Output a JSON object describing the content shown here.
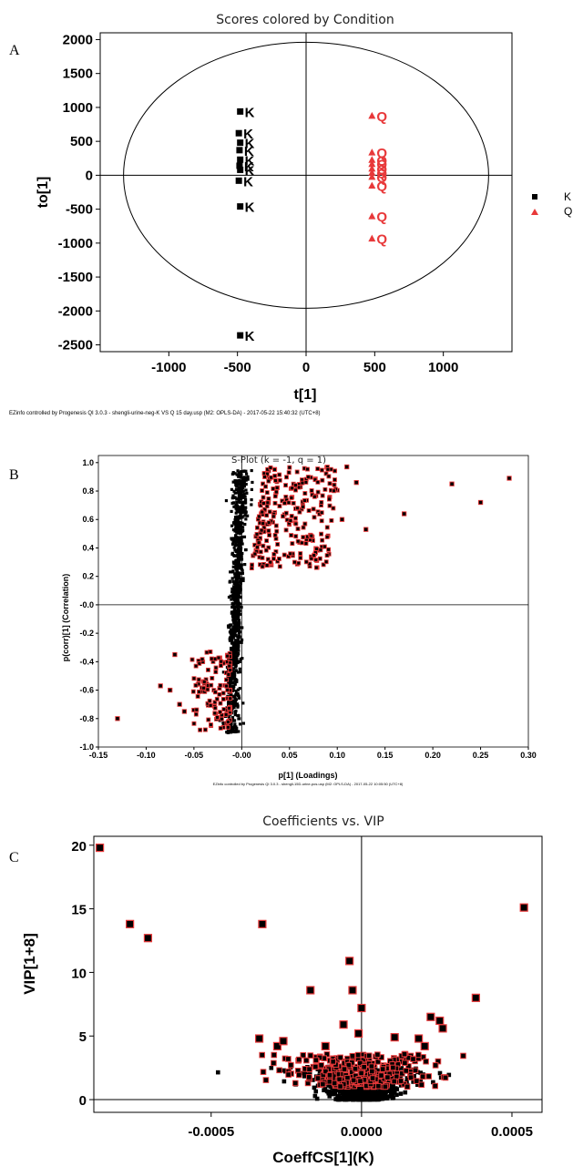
{
  "colors": {
    "k": "#000000",
    "q": "#e8393a",
    "edge": "#e8393a"
  },
  "chart_data": [
    {
      "panel": "A",
      "type": "scatter",
      "title": "Scores colored by Condition",
      "xlabel": "t[1]",
      "ylabel": "to[1]",
      "xlim": [
        -1500,
        1500
      ],
      "ylim": [
        -2600,
        2100
      ],
      "xticks": [
        "-1000",
        "-500",
        "0",
        "500",
        "1000"
      ],
      "xtick_values": [
        -1000,
        -500,
        0,
        500,
        1000
      ],
      "yticks": [
        "2000",
        "1500",
        "1000",
        "500",
        "0",
        "-500",
        "-1000",
        "-1500",
        "-2000",
        "-2500"
      ],
      "ytick_values": [
        2000,
        1500,
        1000,
        500,
        0,
        -500,
        -1000,
        -1500,
        -2000,
        -2500
      ],
      "ellipse": {
        "rx": 1330,
        "ry_top": 1960,
        "ry_bottom": 1960
      },
      "footnote": "EZinfo controlled by Progenesis QI 3.0.3 - shengli-urine-neg-K VS Q 15 day.usp (M2: OPLS-DA) - 2017-05-22 15:40:32 (UTC+8)",
      "legend": [
        "K",
        "Q"
      ],
      "series": [
        {
          "name": "K",
          "marker": "square",
          "label": "K",
          "points": [
            [
              -480,
              940
            ],
            [
              -490,
              620
            ],
            [
              -480,
              480
            ],
            [
              -485,
              370
            ],
            [
              -480,
              230
            ],
            [
              -485,
              140
            ],
            [
              -480,
              80
            ],
            [
              -490,
              -80
            ],
            [
              -480,
              -460
            ],
            [
              -480,
              -2360
            ]
          ]
        },
        {
          "name": "Q",
          "marker": "triangle",
          "label": "Q",
          "points": [
            [
              480,
              880
            ],
            [
              480,
              340
            ],
            [
              480,
              230
            ],
            [
              480,
              170
            ],
            [
              480,
              100
            ],
            [
              480,
              40
            ],
            [
              480,
              -20
            ],
            [
              480,
              -150
            ],
            [
              480,
              -600
            ],
            [
              480,
              -930
            ]
          ]
        }
      ]
    },
    {
      "panel": "B",
      "type": "scatter",
      "title": "S-Plot (k = -1, q = 1)",
      "xlabel": "p[1] (Loadings)",
      "ylabel": "p(corr)[1] (Correlation)",
      "xlim": [
        -0.15,
        0.3
      ],
      "ylim": [
        -1.0,
        1.05
      ],
      "xticks": [
        "-0.15",
        "-0.10",
        "-0.05",
        "-0.00",
        "0.05",
        "0.10",
        "0.15",
        "0.20",
        "0.25",
        "0.30"
      ],
      "xtick_values": [
        -0.15,
        -0.1,
        -0.05,
        0.0,
        0.05,
        0.1,
        0.15,
        0.2,
        0.25,
        0.3
      ],
      "yticks": [
        "1.0",
        "0.8",
        "0.6",
        "0.4",
        "0.2",
        "-0.0",
        "-0.2",
        "-0.4",
        "-0.6",
        "-0.8",
        "-1.0"
      ],
      "ytick_values": [
        1.0,
        0.8,
        0.6,
        0.4,
        0.2,
        0.0,
        -0.2,
        -0.4,
        -0.6,
        -0.8,
        -1.0
      ],
      "footnote": "EZinfo controlled by Progenesis QI 3.0.3 - shengli-15D-urine-pos.usp (M2: OPLS-DA) - 2017-05-22 10:05:50 (UTC+8)",
      "outliers": [
        [
          -0.13,
          -0.8
        ],
        [
          0.28,
          0.89
        ],
        [
          0.25,
          0.72
        ],
        [
          0.22,
          0.85
        ],
        [
          0.17,
          0.64
        ],
        [
          0.13,
          0.53
        ],
        [
          0.12,
          0.86
        ],
        [
          0.11,
          0.97
        ],
        [
          0.105,
          0.6
        ],
        [
          -0.085,
          -0.57
        ],
        [
          -0.07,
          -0.35
        ],
        [
          -0.065,
          -0.7
        ],
        [
          -0.075,
          -0.6
        ],
        [
          -0.06,
          -0.75
        ]
      ],
      "cloud": {
        "x_core": -0.005,
        "note": "dense S-shaped cloud of several thousand variables"
      }
    },
    {
      "panel": "C",
      "type": "scatter",
      "title": "Coefficients vs. VIP",
      "xlabel": "CoeffCS[1](K)",
      "ylabel": "VIP[1+8]",
      "xlim": [
        -0.00089,
        0.0006
      ],
      "ylim": [
        -1,
        20.7
      ],
      "xticks": [
        "-0.0005",
        "0.0000",
        "0.0005"
      ],
      "xtick_values": [
        -0.0005,
        0.0,
        0.0005
      ],
      "yticks": [
        "20",
        "15",
        "10",
        "5",
        "0"
      ],
      "ytick_values": [
        20,
        15,
        10,
        5,
        0
      ],
      "points": [
        [
          -0.00087,
          19.8
        ],
        [
          -0.00077,
          13.8
        ],
        [
          -0.00071,
          12.7
        ],
        [
          -0.00033,
          13.8
        ],
        [
          -4e-05,
          10.9
        ],
        [
          0.00054,
          15.1
        ],
        [
          -0.00017,
          8.6
        ],
        [
          -3e-05,
          8.6
        ],
        [
          0.0,
          7.2
        ],
        [
          0.00038,
          8.0
        ],
        [
          -0.00034,
          4.8
        ],
        [
          -0.00028,
          4.2
        ],
        [
          -0.00026,
          4.6
        ],
        [
          0.00023,
          6.5
        ],
        [
          0.00026,
          6.2
        ],
        [
          0.00027,
          5.6
        ],
        [
          -6e-05,
          5.9
        ],
        [
          -1e-05,
          5.2
        ],
        [
          0.00019,
          4.8
        ],
        [
          0.00021,
          4.2
        ],
        [
          -0.00012,
          4.2
        ],
        [
          0.00011,
          4.9
        ]
      ],
      "cloud": {
        "note": "dense cloud of variables with VIP between 0 and 4 near zero coefficient"
      }
    }
  ]
}
